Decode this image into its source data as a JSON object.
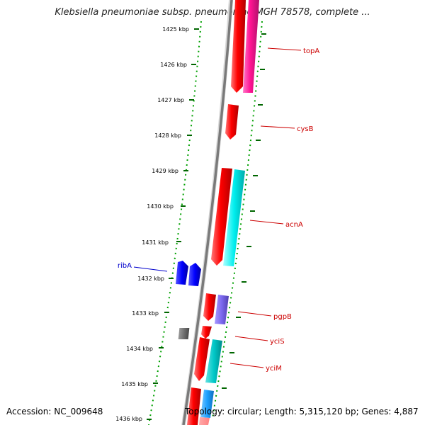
{
  "title": "Klebsiella pneumoniae subsp. pneumoniae MGH 78578, complete ...",
  "footer": {
    "accession": "Accession: NC_009648",
    "topology": "Topology: circular; Length: 5,315,120 bp; Genes: 4,887"
  },
  "ticks": [
    {
      "label": "1425 kbp"
    },
    {
      "label": "1426 kbp"
    },
    {
      "label": "1427 kbp"
    },
    {
      "label": "1428 kbp"
    },
    {
      "label": "1429 kbp"
    },
    {
      "label": "1430 kbp"
    },
    {
      "label": "1431 kbp"
    },
    {
      "label": "1432 kbp"
    },
    {
      "label": "1433 kbp"
    },
    {
      "label": "1434 kbp"
    },
    {
      "label": "1435 kbp"
    },
    {
      "label": "1436 kbp"
    }
  ],
  "gene_labels": [
    {
      "label": "topA",
      "color": "#cc0000"
    },
    {
      "label": "cysB",
      "color": "#cc0000"
    },
    {
      "label": "acnA",
      "color": "#cc0000"
    },
    {
      "label": "ribA",
      "color": "#0000cc"
    },
    {
      "label": "pgpB",
      "color": "#cc0000"
    },
    {
      "label": "yciS",
      "color": "#cc0000"
    },
    {
      "label": "yciM",
      "color": "#cc0000"
    }
  ],
  "colors": {
    "forward_cds": "#ff0000",
    "reverse_cds": "#0000ff",
    "backbone": "#7a7a7a",
    "tick_dots": "#00aa00",
    "tick_marks": "#006600",
    "magenta_feature": "#ff1493",
    "cyan_feature": "#00eeee",
    "purple_feature": "#7b68ee",
    "grey_feature": "#707070",
    "light_blue_feature": "#1ea0ff"
  }
}
